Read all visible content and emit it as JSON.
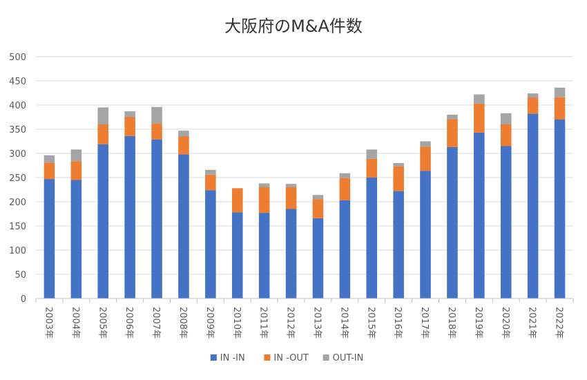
{
  "chart_data": {
    "type": "bar",
    "stacked": true,
    "title": "大阪府のM&A件数",
    "xlabel": "",
    "ylabel": "",
    "ylim": [
      0,
      500
    ],
    "yticks": [
      0,
      50,
      100,
      150,
      200,
      250,
      300,
      350,
      400,
      450,
      500
    ],
    "grid": true,
    "legend_position": "bottom",
    "categories": [
      "2003年",
      "2004年",
      "2005年",
      "2006年",
      "2007年",
      "2008年",
      "2009年",
      "2010年",
      "2011年",
      "2012年",
      "2013年",
      "2014年",
      "2015年",
      "2016年",
      "2017年",
      "2018年",
      "2019年",
      "2020年",
      "2021年",
      "2022年"
    ],
    "series": [
      {
        "name": "IN -IN",
        "color": "#4472C4",
        "values": [
          247,
          245,
          319,
          336,
          329,
          298,
          224,
          178,
          177,
          185,
          166,
          203,
          250,
          222,
          264,
          313,
          343,
          315,
          382,
          370
        ]
      },
      {
        "name": "IN -OUT",
        "color": "#ED7D31",
        "values": [
          34,
          39,
          41,
          39,
          33,
          37,
          32,
          50,
          53,
          45,
          39,
          46,
          39,
          51,
          50,
          58,
          60,
          45,
          33,
          46
        ]
      },
      {
        "name": "OUT-IN",
        "color": "#A5A5A5",
        "values": [
          15,
          24,
          35,
          12,
          34,
          12,
          10,
          0,
          8,
          7,
          9,
          10,
          19,
          7,
          11,
          9,
          19,
          23,
          9,
          20
        ]
      }
    ]
  }
}
